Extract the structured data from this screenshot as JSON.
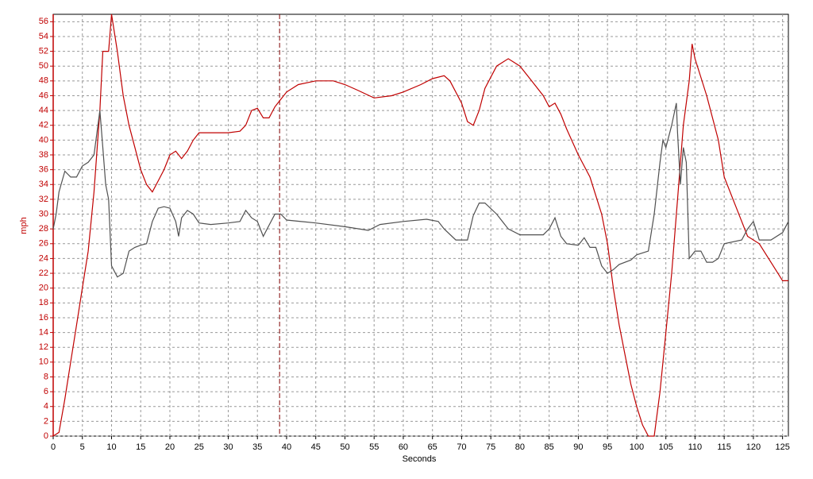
{
  "chart_data": {
    "type": "line",
    "xlabel": "Seconds",
    "ylabel": "mph",
    "xlim": [
      0,
      126
    ],
    "ylim": [
      0,
      57
    ],
    "xticks": [
      0,
      5,
      10,
      15,
      20,
      25,
      30,
      35,
      40,
      45,
      50,
      55,
      60,
      65,
      70,
      75,
      80,
      85,
      90,
      95,
      100,
      105,
      110,
      115,
      120,
      125
    ],
    "yticks": [
      0,
      2,
      4,
      6,
      8,
      10,
      12,
      14,
      16,
      18,
      20,
      22,
      24,
      26,
      28,
      30,
      32,
      34,
      36,
      38,
      40,
      42,
      44,
      46,
      48,
      50,
      52,
      54,
      56
    ],
    "grid": true,
    "marker_x": 38.8,
    "marker_color": "#800000",
    "axis_color": "#c00000",
    "series": [
      {
        "color": "#c00000",
        "x": [
          0,
          1,
          2,
          3,
          4,
          5,
          6,
          7,
          8,
          8.5,
          9,
          9.5,
          10,
          11,
          12,
          13,
          14,
          15,
          16,
          17,
          18,
          19,
          20,
          21,
          22,
          23,
          24,
          25,
          27,
          30,
          32,
          33,
          34,
          35,
          36,
          37,
          38,
          39,
          40,
          42,
          45,
          48,
          50,
          52,
          55,
          58,
          60,
          63,
          65,
          67,
          68,
          70,
          71,
          72,
          73,
          74,
          76,
          78,
          80,
          82,
          84,
          85,
          86,
          87,
          88,
          90,
          92,
          94,
          95,
          96,
          97,
          98,
          99,
          100,
          101,
          102,
          103,
          104,
          105,
          106,
          107,
          108,
          109,
          109.5,
          110,
          112,
          114,
          115,
          117,
          119,
          121,
          123,
          125,
          126
        ],
        "values": [
          0,
          0.5,
          5,
          10,
          15,
          20,
          25,
          33,
          44,
          52,
          52,
          52,
          57,
          52,
          46,
          42,
          39,
          36,
          34,
          33,
          34.5,
          36,
          38,
          38.5,
          37.5,
          38.5,
          40,
          41,
          41,
          41,
          41.2,
          42,
          44,
          44.3,
          43,
          43,
          44.5,
          45.5,
          46.5,
          47.5,
          48,
          48,
          47.5,
          46.8,
          45.7,
          46,
          46.5,
          47.5,
          48.3,
          48.7,
          48,
          45,
          42.5,
          42,
          44,
          47,
          50,
          51,
          50,
          48,
          46,
          44.5,
          45,
          43.5,
          41.5,
          38,
          35,
          30,
          26,
          20,
          15,
          11,
          7,
          4,
          1.5,
          0,
          0,
          6,
          14,
          22,
          32,
          42,
          48,
          53,
          51,
          46,
          40,
          35,
          31,
          27,
          26,
          23.5,
          21,
          21
        ]
      },
      {
        "color": "#505050",
        "x": [
          0,
          0.5,
          1,
          2,
          3,
          4,
          5,
          6,
          7,
          8,
          8.5,
          9,
          9.5,
          10,
          11,
          12,
          13,
          14,
          15,
          16,
          17,
          18,
          19,
          20,
          21,
          21.5,
          22,
          23,
          24,
          25,
          27,
          30,
          32,
          33,
          34,
          35,
          36,
          37,
          38,
          39,
          40,
          45,
          50,
          54,
          56,
          60,
          64,
          66,
          67,
          69,
          71,
          72,
          73,
          74,
          76,
          78,
          80,
          84,
          85,
          86,
          87,
          88,
          90,
          91,
          92,
          93,
          94,
          95,
          96,
          97,
          99,
          100,
          102,
          103,
          104,
          104.5,
          105,
          106,
          106.8,
          107,
          107.5,
          108,
          108.5,
          109,
          110,
          111,
          112,
          113,
          114,
          115,
          118,
          119,
          120,
          121,
          123,
          125,
          126
        ],
        "values": [
          28,
          30,
          33,
          35.8,
          35,
          35,
          36.5,
          37,
          38,
          44,
          39,
          34,
          32,
          23,
          21.5,
          22,
          25,
          25.5,
          25.8,
          26,
          29,
          30.8,
          31,
          30.8,
          29,
          27,
          29.5,
          30.5,
          30,
          28.8,
          28.6,
          28.8,
          29,
          30.5,
          29.5,
          29,
          27,
          28.5,
          30,
          30,
          29.2,
          28.8,
          28.3,
          27.8,
          28.6,
          29,
          29.3,
          29,
          28,
          26.5,
          26.5,
          29.8,
          31.5,
          31.5,
          30,
          28,
          27.2,
          27.2,
          28,
          29.5,
          27,
          26,
          25.8,
          26.8,
          25.5,
          25.5,
          23,
          22,
          22.5,
          23.2,
          23.8,
          24.5,
          25,
          30,
          37,
          40,
          39,
          42,
          45,
          41,
          34,
          39,
          37,
          24,
          25,
          25,
          23.5,
          23.5,
          24,
          26,
          26.5,
          28,
          29,
          26.5,
          26.5,
          27.5,
          29
        ]
      }
    ]
  }
}
